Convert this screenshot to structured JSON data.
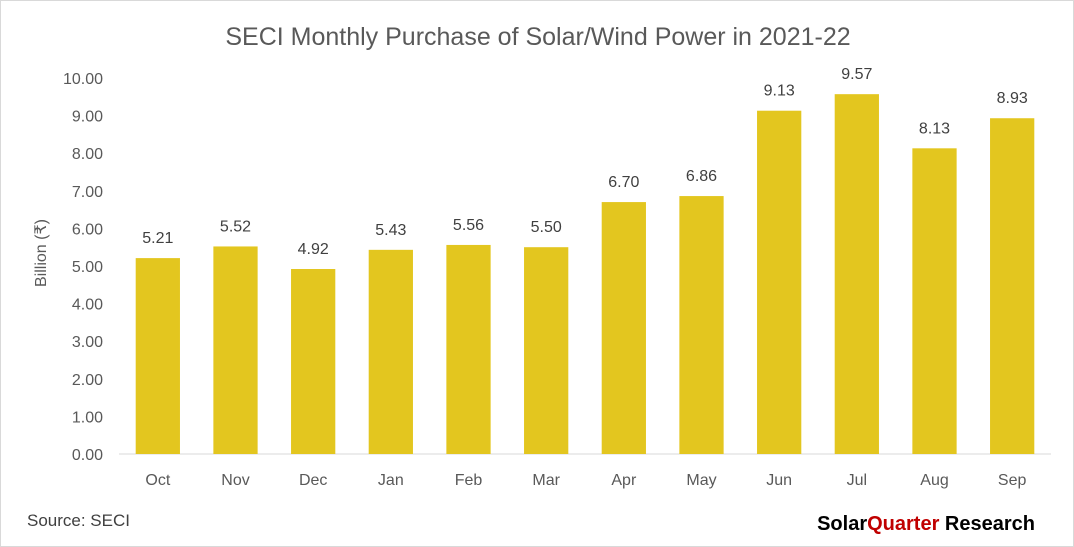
{
  "chart_data": {
    "type": "bar",
    "title": "SECI Monthly Purchase of Solar/Wind Power in 2021-22",
    "ylabel": "Billion (₹)",
    "xlabel": "",
    "categories": [
      "Oct",
      "Nov",
      "Dec",
      "Jan",
      "Feb",
      "Mar",
      "Apr",
      "May",
      "Jun",
      "Jul",
      "Aug",
      "Sep"
    ],
    "values": [
      5.21,
      5.52,
      4.92,
      5.43,
      5.56,
      5.5,
      6.7,
      6.86,
      9.13,
      9.57,
      8.13,
      8.93
    ],
    "data_labels": [
      "5.21",
      "5.52",
      "4.92",
      "5.43",
      "5.56",
      "5.50",
      "6.70",
      "6.86",
      "9.13",
      "9.57",
      "8.13",
      "8.93"
    ],
    "ylim": [
      0,
      10
    ],
    "yticks": [
      "0.00",
      "1.00",
      "2.00",
      "3.00",
      "4.00",
      "5.00",
      "6.00",
      "7.00",
      "8.00",
      "9.00",
      "10.00"
    ],
    "grid": false,
    "bar_color": "#e3c61f"
  },
  "footer": {
    "source": "Source: SECI",
    "brand_part1": "Solar",
    "brand_part2": "Quarter",
    "brand_part3": " Research"
  }
}
